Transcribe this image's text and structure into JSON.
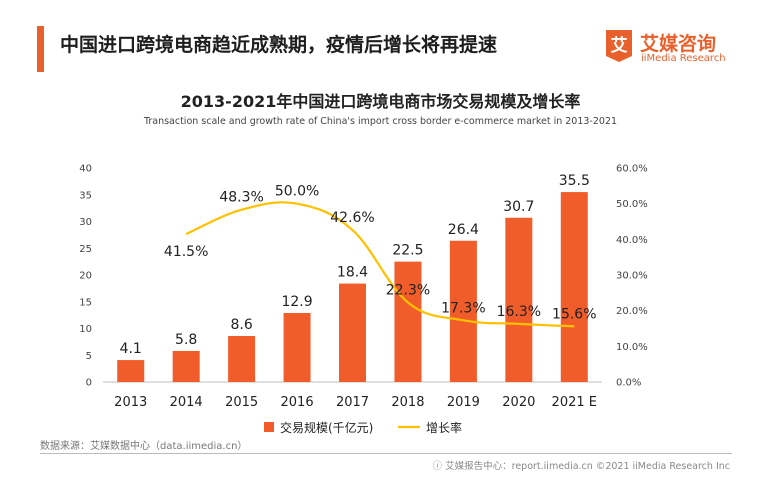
{
  "header": {
    "headline": "中国进口跨境电商趋近成熟期，疫情后增长将再提速",
    "logo_text": "艾媒咨询",
    "logo_sub": "iiMedia Research",
    "logo_glyph": "艾"
  },
  "chart_data": {
    "type": "bar",
    "title": "2013-2021年中国进口跨境电商市场交易规模及增长率",
    "subtitle": "Transaction scale and growth rate of China's import cross border e-commerce market in 2013-2021",
    "categories": [
      "2013",
      "2014",
      "2015",
      "2016",
      "2017",
      "2018",
      "2019",
      "2020",
      "2021 E"
    ],
    "series": [
      {
        "name": "交易规模(千亿元)",
        "type": "bar",
        "axis": "left",
        "color": "#f05d2a",
        "values": [
          4.1,
          5.8,
          8.6,
          12.9,
          18.4,
          22.5,
          26.4,
          30.7,
          35.5
        ],
        "labels": [
          "4.1",
          "5.8",
          "8.6",
          "12.9",
          "18.4",
          "22.5",
          "26.4",
          "30.7",
          "35.5"
        ]
      },
      {
        "name": "增长率",
        "type": "line",
        "axis": "right",
        "color": "#ffc000",
        "values": [
          null,
          41.5,
          48.3,
          50.0,
          42.6,
          22.3,
          17.3,
          16.3,
          15.6
        ],
        "labels": [
          null,
          "41.5%",
          "48.3%",
          "50.0%",
          "42.6%",
          "22.3%",
          "17.3%",
          "16.3%",
          "15.6%"
        ]
      }
    ],
    "y_left": {
      "min": 0,
      "max": 40,
      "ticks": [
        0,
        5,
        10,
        15,
        20,
        25,
        30,
        35,
        40
      ],
      "tick_labels": [
        "0",
        "5",
        "10",
        "15",
        "20",
        "25",
        "30",
        "35",
        "40"
      ]
    },
    "y_right": {
      "min": 0,
      "max": 60,
      "ticks": [
        0,
        10,
        20,
        30,
        40,
        50,
        60
      ],
      "tick_labels": [
        "0.0%",
        "10.0%",
        "20.0%",
        "30.0%",
        "40.0%",
        "50.0%",
        "60.0%"
      ]
    },
    "legend": {
      "position": "bottom-center",
      "entries": [
        "交易规模(千亿元)",
        "增长率"
      ]
    },
    "grid": false
  },
  "footer": {
    "source": "数据来源：艾媒数据中心（data.iimedia.cn）",
    "credit": "ⓘ 艾媒报告中心：report.iimedia.cn    ©2021  iiMedia Research  Inc"
  }
}
